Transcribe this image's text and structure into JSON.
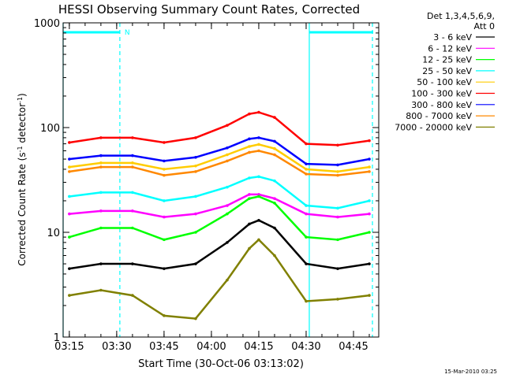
{
  "chart_data": {
    "type": "line",
    "title": "HESSI Observing Summary Count Rates, Corrected",
    "xlabel": "Start Time (30-Oct-06 03:13:02)",
    "ylabel_main": "Corrected Count Rate (s",
    "ylabel_sup1": "-1",
    "ylabel_mid": " detector",
    "ylabel_sup2": "-1",
    "ylabel_end": ")",
    "yscale": "log",
    "ylim": [
      1,
      1000
    ],
    "xlim": [
      "03:13:02",
      "04:53:00"
    ],
    "y_ticks": [
      "1",
      "10",
      "100",
      "1000"
    ],
    "x_ticks": [
      "03:15",
      "03:30",
      "03:45",
      "04:00",
      "04:15",
      "04:30",
      "04:45"
    ],
    "timestamp": "15-Mar-2010 03:25",
    "legend": {
      "header1": "Det 1,3,4,5,6,9,",
      "header2": "Att 0",
      "entries": [
        {
          "label": "3 - 6 keV",
          "color": "#000000"
        },
        {
          "label": "6 - 12 keV",
          "color": "#ff00ff"
        },
        {
          "label": "12 - 25 keV",
          "color": "#00ff00"
        },
        {
          "label": "25 - 50 keV",
          "color": "#00ffff"
        },
        {
          "label": "50 - 100 keV",
          "color": "#ffcc00"
        },
        {
          "label": "100 - 300 keV",
          "color": "#ff0000"
        },
        {
          "label": "300 - 800 keV",
          "color": "#0000ff"
        },
        {
          "label": "800 - 7000 keV",
          "color": "#ff8800"
        },
        {
          "label": "7000 - 20000 keV",
          "color": "#808000"
        }
      ]
    },
    "night_markers": {
      "color": "#00ffff",
      "solid_times": [
        "03:13:02",
        "04:31:00"
      ],
      "dashed_times": [
        "03:31:00",
        "04:51:00"
      ],
      "label": "N"
    },
    "series": [
      {
        "band": "3 - 6 keV",
        "color": "#000000",
        "x": [
          "03:15",
          "03:25",
          "03:35",
          "03:45",
          "03:55",
          "04:05",
          "04:12",
          "04:15",
          "04:20",
          "04:30",
          "04:40",
          "04:50"
        ],
        "y": [
          4.5,
          5,
          5,
          4.5,
          5,
          8,
          12,
          13,
          11,
          5,
          4.5,
          5
        ]
      },
      {
        "band": "6 - 12 keV",
        "color": "#ff00ff",
        "x": [
          "03:15",
          "03:25",
          "03:35",
          "03:45",
          "03:55",
          "04:05",
          "04:12",
          "04:15",
          "04:20",
          "04:30",
          "04:40",
          "04:50"
        ],
        "y": [
          15,
          16,
          16,
          14,
          15,
          18,
          23,
          23,
          21,
          15,
          14,
          15
        ]
      },
      {
        "band": "12 - 25 keV",
        "color": "#00ff00",
        "x": [
          "03:15",
          "03:25",
          "03:35",
          "03:45",
          "03:55",
          "04:05",
          "04:12",
          "04:15",
          "04:20",
          "04:30",
          "04:40",
          "04:50"
        ],
        "y": [
          9,
          11,
          11,
          8.5,
          10,
          15,
          21,
          22,
          19,
          9,
          8.5,
          10
        ]
      },
      {
        "band": "25 - 50 keV",
        "color": "#00ffff",
        "x": [
          "03:15",
          "03:25",
          "03:35",
          "03:45",
          "03:55",
          "04:05",
          "04:12",
          "04:15",
          "04:20",
          "04:30",
          "04:40",
          "04:50"
        ],
        "y": [
          22,
          24,
          24,
          20,
          22,
          27,
          33,
          34,
          31,
          18,
          17,
          20
        ]
      },
      {
        "band": "50 - 100 keV",
        "color": "#ffcc00",
        "x": [
          "03:15",
          "03:25",
          "03:35",
          "03:45",
          "03:55",
          "04:05",
          "04:12",
          "04:15",
          "04:20",
          "04:30",
          "04:40",
          "04:50"
        ],
        "y": [
          42,
          46,
          46,
          40,
          43,
          55,
          66,
          69,
          63,
          40,
          38,
          42
        ]
      },
      {
        "band": "100 - 300 keV",
        "color": "#ff0000",
        "x": [
          "03:15",
          "03:25",
          "03:35",
          "03:45",
          "03:55",
          "04:05",
          "04:12",
          "04:15",
          "04:20",
          "04:30",
          "04:40",
          "04:50"
        ],
        "y": [
          72,
          80,
          80,
          72,
          80,
          105,
          135,
          140,
          125,
          70,
          68,
          75
        ]
      },
      {
        "band": "300 - 800 keV",
        "color": "#0000ff",
        "x": [
          "03:15",
          "03:25",
          "03:35",
          "03:45",
          "03:55",
          "04:05",
          "04:12",
          "04:15",
          "04:20",
          "04:30",
          "04:40",
          "04:50"
        ],
        "y": [
          50,
          54,
          54,
          48,
          52,
          64,
          78,
          80,
          74,
          45,
          44,
          50
        ]
      },
      {
        "band": "800 - 7000 keV",
        "color": "#ff8800",
        "x": [
          "03:15",
          "03:25",
          "03:35",
          "03:45",
          "03:55",
          "04:05",
          "04:12",
          "04:15",
          "04:20",
          "04:30",
          "04:40",
          "04:50"
        ],
        "y": [
          38,
          42,
          42,
          35,
          38,
          48,
          58,
          60,
          55,
          36,
          35,
          38
        ]
      },
      {
        "band": "7000 - 20000 keV",
        "color": "#808000",
        "x": [
          "03:15",
          "03:25",
          "03:35",
          "03:45",
          "03:55",
          "04:05",
          "04:12",
          "04:15",
          "04:20",
          "04:30",
          "04:40",
          "04:50"
        ],
        "y": [
          2.5,
          2.8,
          2.5,
          1.6,
          1.5,
          3.5,
          7,
          8.5,
          6,
          2.2,
          2.3,
          2.5
        ]
      }
    ]
  }
}
